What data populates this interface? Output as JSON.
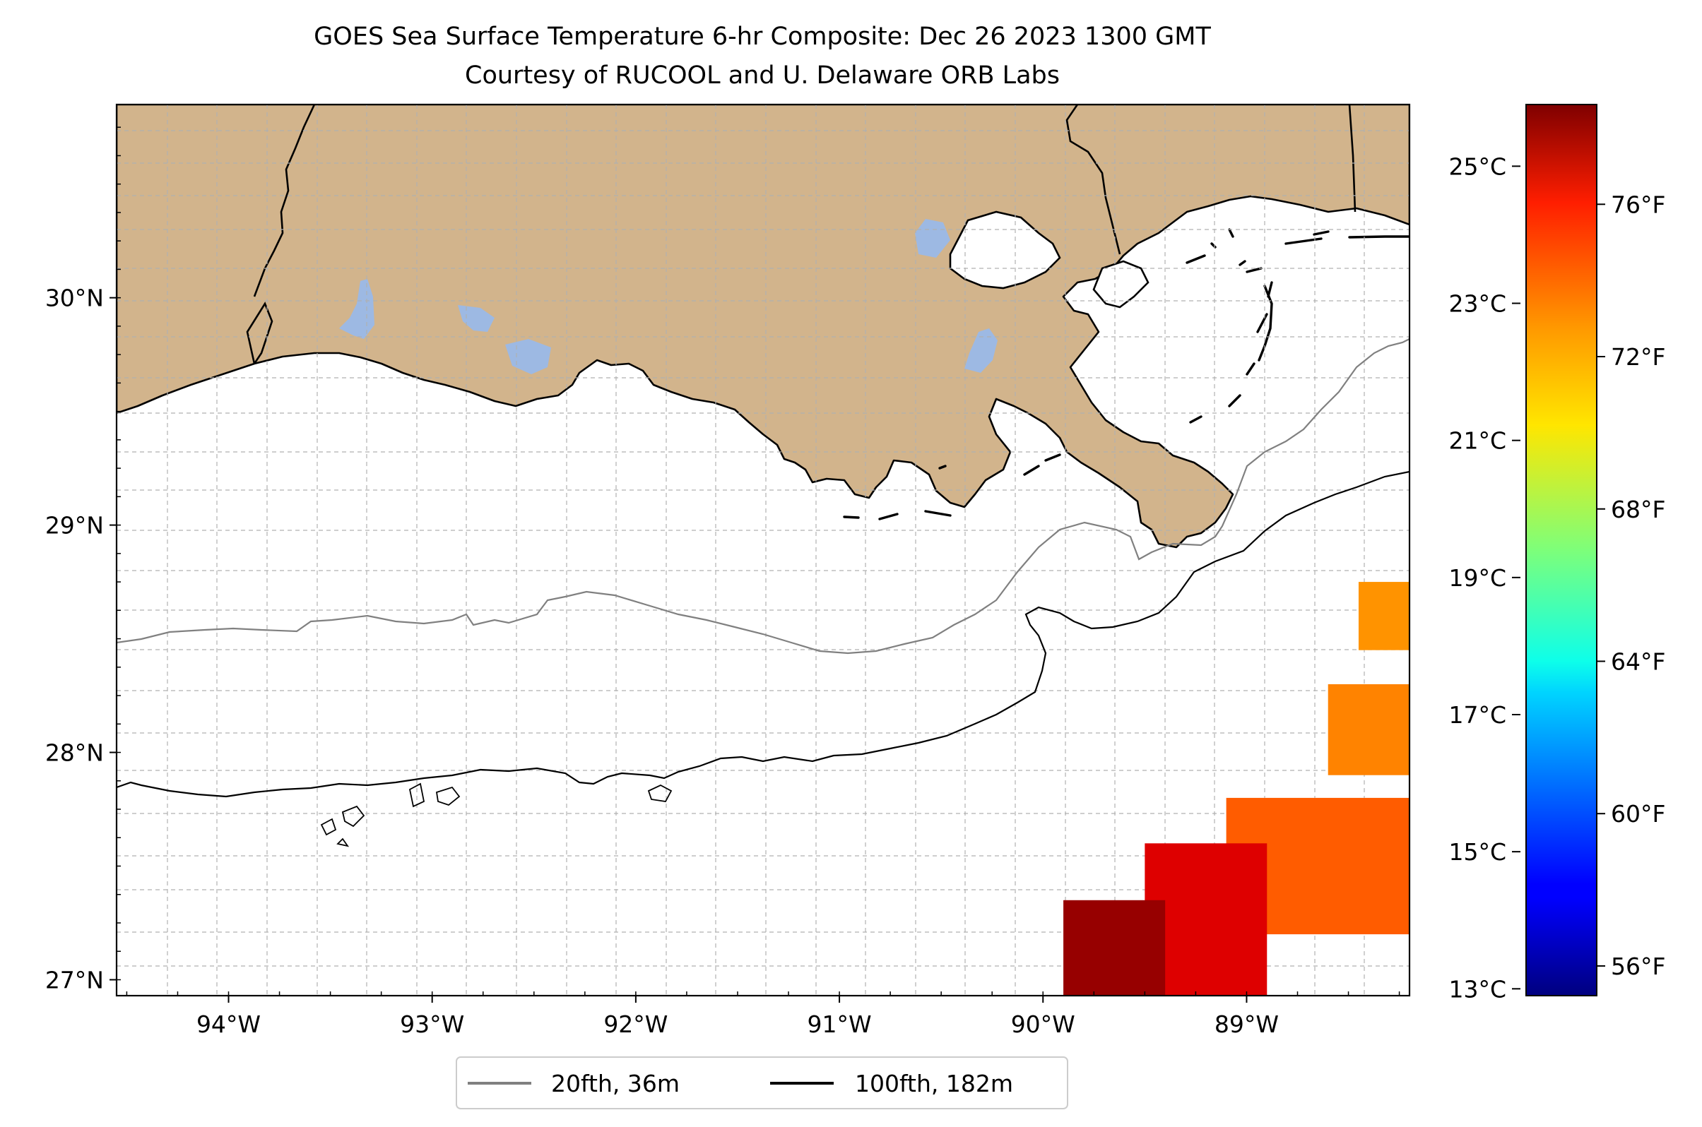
{
  "title": {
    "line1": "GOES Sea Surface Temperature 6-hr Composite: Dec 26 2023 1300 GMT",
    "line2": "Courtesy of RUCOOL and U. Delaware ORB Labs"
  },
  "map": {
    "lon_range": [
      -94.55,
      -88.2
    ],
    "lat_range": [
      26.93,
      30.85
    ],
    "lon_ticks": [
      {
        "value": -94,
        "label": "94°W"
      },
      {
        "value": -93,
        "label": "93°W"
      },
      {
        "value": -92,
        "label": "92°W"
      },
      {
        "value": -91,
        "label": "91°W"
      },
      {
        "value": -90,
        "label": "90°W"
      },
      {
        "value": -89,
        "label": "89°W"
      }
    ],
    "lat_ticks": [
      {
        "value": 27,
        "label": "27°N"
      },
      {
        "value": 28,
        "label": "28°N"
      },
      {
        "value": 29,
        "label": "29°N"
      },
      {
        "value": 30,
        "label": "30°N"
      }
    ],
    "grid": true,
    "land_color": "#d2b48c",
    "lake_color": "#9db9e3",
    "ocean_color": "#ffffff"
  },
  "legend": {
    "placement": "bottom-center",
    "items": [
      {
        "label": "20fth, 36m",
        "color": "#808080"
      },
      {
        "label": "100fth, 182m",
        "color": "#000000"
      }
    ]
  },
  "colorbar": {
    "colormap": "jet",
    "c_range": [
      12.9,
      25.9
    ],
    "celsius_ticks": [
      {
        "value": 13,
        "label": "13°C"
      },
      {
        "value": 15,
        "label": "15°C"
      },
      {
        "value": 17,
        "label": "17°C"
      },
      {
        "value": 19,
        "label": "19°C"
      },
      {
        "value": 21,
        "label": "21°C"
      },
      {
        "value": 23,
        "label": "23°C"
      },
      {
        "value": 25,
        "label": "25°C"
      }
    ],
    "fahrenheit_ticks": [
      {
        "value": 56,
        "label": "56°F"
      },
      {
        "value": 60,
        "label": "60°F"
      },
      {
        "value": 64,
        "label": "64°F"
      },
      {
        "value": 68,
        "label": "68°F"
      },
      {
        "value": 72,
        "label": "72°F"
      },
      {
        "value": 76,
        "label": "76°F"
      }
    ]
  },
  "chart_data": {
    "type": "heatmap",
    "title": "GOES Sea Surface Temperature 6-hr Composite: Dec 26 2023 1300 GMT",
    "subtitle": "Courtesy of RUCOOL and U. Delaware ORB Labs",
    "xlim": [
      -94.55,
      -88.2
    ],
    "ylim": [
      26.93,
      30.85
    ],
    "sst_regions_celsius": [
      {
        "lon_range": [
          -88.45,
          -88.2
        ],
        "lat_range": [
          28.45,
          28.75
        ],
        "sst": 22.4
      },
      {
        "lon_range": [
          -88.6,
          -88.2
        ],
        "lat_range": [
          27.9,
          28.3
        ],
        "sst": 22.6
      },
      {
        "lon_range": [
          -89.1,
          -88.2
        ],
        "lat_range": [
          27.2,
          27.8
        ],
        "sst": 23.1
      },
      {
        "lon_range": [
          -89.5,
          -88.9
        ],
        "lat_range": [
          26.93,
          27.6
        ],
        "sst": 24.7
      },
      {
        "lon_range": [
          -89.9,
          -89.4
        ],
        "lat_range": [
          26.93,
          27.35
        ],
        "sst": 25.6
      }
    ]
  }
}
